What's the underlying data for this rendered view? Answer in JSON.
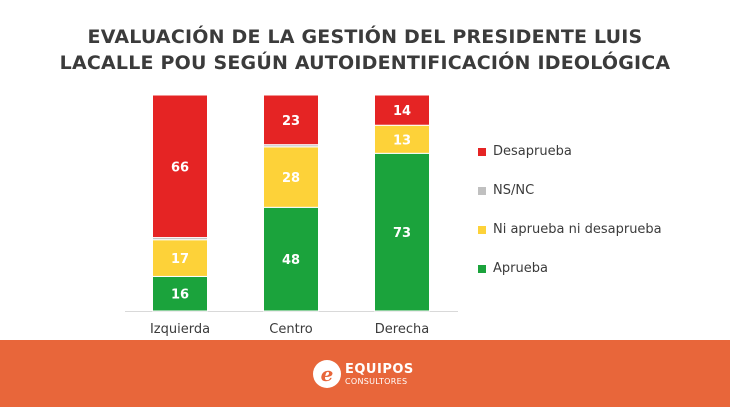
{
  "chart_data": {
    "type": "stacked-bar",
    "title_lines": [
      "EVALUACIÓN DE LA GESTIÓN DEL PRESIDENTE LUIS",
      "LACALLE POU SEGÚN AUTOIDENTIFICACIÓN IDEOLÓGICA"
    ],
    "categories": [
      "Izquierda",
      "Centro",
      "Derecha"
    ],
    "ylim": [
      0,
      100
    ],
    "series": [
      {
        "name": "Aprueba",
        "color": "#1ba33c",
        "values": [
          16,
          48,
          73
        ]
      },
      {
        "name": "Ni aprueba ni desaprueba",
        "color": "#fdd239",
        "values": [
          17,
          28,
          13
        ]
      },
      {
        "name": "NS/NC",
        "color": "#c0c0c0",
        "values": [
          1,
          1,
          0
        ]
      },
      {
        "name": "Desaprueba",
        "color": "#e52424",
        "values": [
          66,
          23,
          14
        ]
      }
    ],
    "legend_order": [
      "Desaprueba",
      "NS/NC",
      "Ni aprueba ni desaprueba",
      "Aprueba"
    ],
    "legend_position": "right",
    "grid": false
  },
  "footer": {
    "logo_mark": "e",
    "logo_name": "EQUIPOS",
    "logo_sub": "CONSULTORES",
    "color": "#e8663a"
  }
}
